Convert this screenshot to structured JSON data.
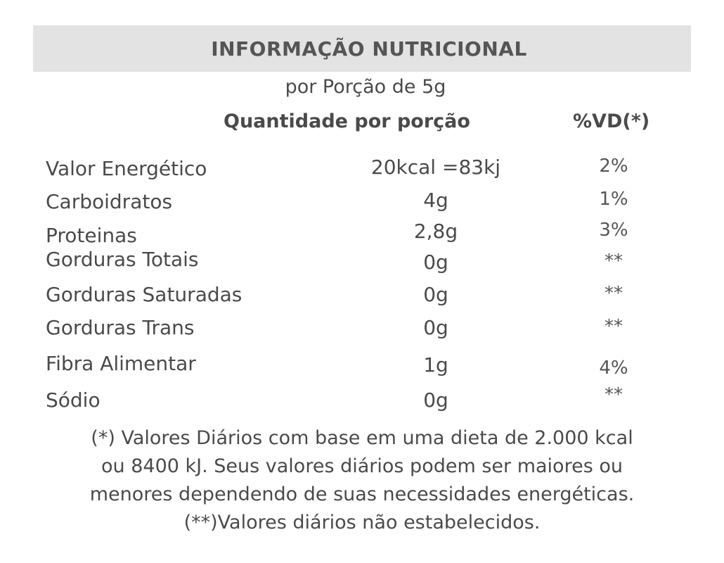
{
  "label": {
    "title": "INFORMAÇÃO NUTRICIONAL",
    "serving": "por Porção de 5g",
    "header_quantity": "Quantidade por porção",
    "header_dv": "%VD(*)"
  },
  "rows": [
    {
      "name": "Valor Energético",
      "quantity": "20kcal =83kj",
      "dv": "2%"
    },
    {
      "name": "Carboidratos",
      "quantity": "4g",
      "dv": "1%"
    },
    {
      "name": "Proteinas",
      "quantity": "2,8g",
      "dv": "3%"
    },
    {
      "name": "Gorduras Totais",
      "quantity": "0g",
      "dv": "**"
    },
    {
      "name": "Gorduras Saturadas",
      "quantity": "0g",
      "dv": "**"
    },
    {
      "name": "Gorduras Trans",
      "quantity": "0g",
      "dv": "**"
    },
    {
      "name": "Fibra Alimentar",
      "quantity": "1g",
      "dv": "4%"
    },
    {
      "name": "Sódio",
      "quantity": "0g",
      "dv": "**"
    }
  ],
  "footnote": {
    "line1": "(*) Valores Diários com base em uma dieta de 2.000 kcal",
    "line2": "ou 8400 kJ. Seus valores diários podem ser maiores ou",
    "line3": "menores dependendo de suas necessidades energéticas.",
    "line4": "(**)Valores diários não estabelecidos."
  }
}
